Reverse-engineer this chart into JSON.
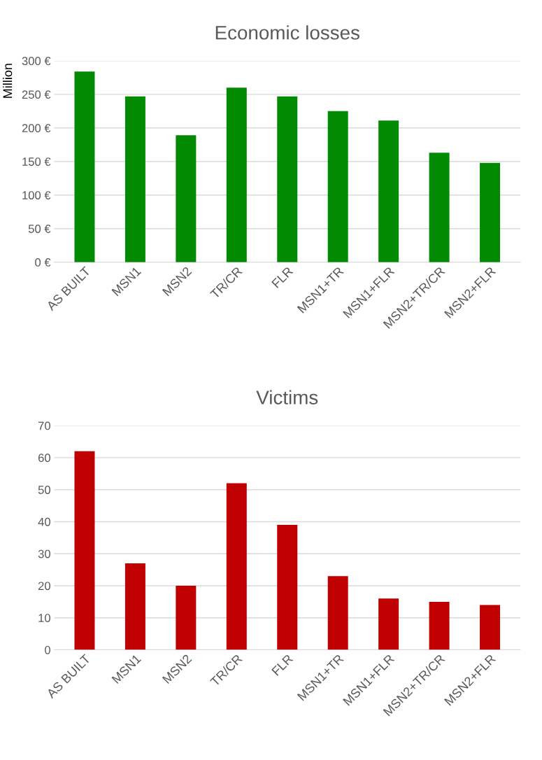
{
  "chart_data": [
    {
      "type": "bar",
      "title": "Economic losses",
      "ylabel": "Million",
      "categories": [
        "AS BUILT",
        "MSN1",
        "MSN2",
        "TR/CR",
        "FLR",
        "MSN1+TR",
        "MSN1+FLR",
        "MSN2+TR/CR",
        "MSN2+FLR"
      ],
      "values": [
        284,
        247,
        189,
        260,
        247,
        225,
        211,
        163,
        148
      ],
      "color": "#038a03",
      "ylim": [
        0,
        300
      ],
      "yticks": [
        {
          "value": 0,
          "label": "0 €"
        },
        {
          "value": 50,
          "label": "50 €"
        },
        {
          "value": 100,
          "label": "100 €"
        },
        {
          "value": 150,
          "label": "150 €"
        },
        {
          "value": 200,
          "label": "200 €"
        },
        {
          "value": 250,
          "label": "250 €"
        },
        {
          "value": 300,
          "label": "300 €"
        }
      ],
      "grid": "y",
      "legend": false
    },
    {
      "type": "bar",
      "title": "Victims",
      "categories": [
        "AS BUILT",
        "MSN1",
        "MSN2",
        "TR/CR",
        "FLR",
        "MSN1+TR",
        "MSN1+FLR",
        "MSN2+TR/CR",
        "MSN2+FLR"
      ],
      "values": [
        62,
        27,
        20,
        52,
        39,
        23,
        16,
        15,
        14
      ],
      "color": "#c00000",
      "ylim": [
        0,
        70
      ],
      "yticks": [
        0,
        10,
        20,
        30,
        40,
        50,
        60,
        70
      ],
      "grid": "y",
      "legend": false
    }
  ]
}
